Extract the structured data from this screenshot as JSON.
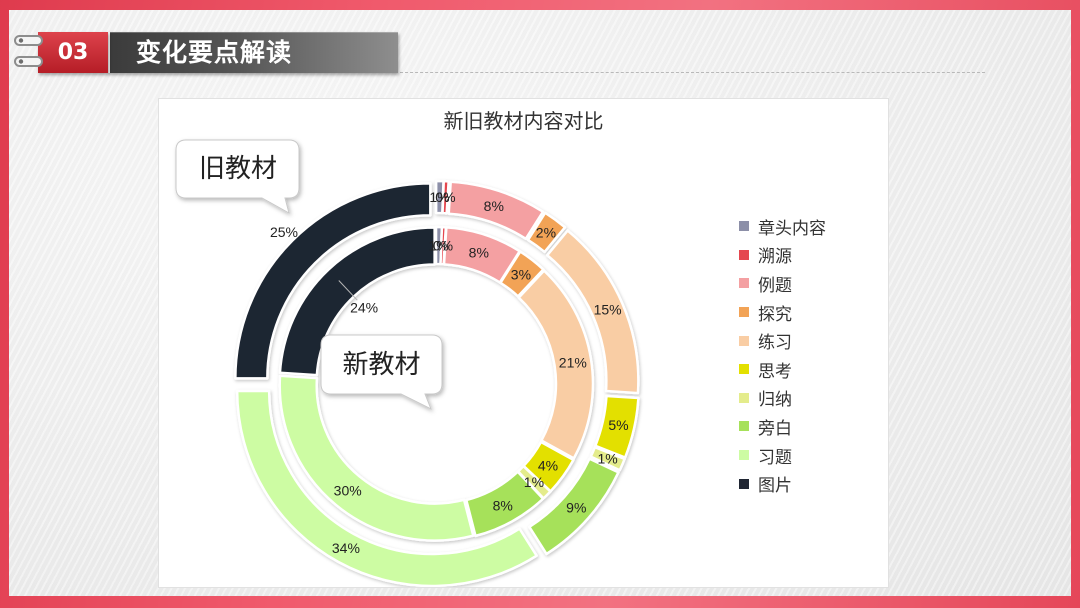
{
  "header": {
    "section_number": "03",
    "section_title": "变化要点解读"
  },
  "theme": {
    "accent": "#d8232e",
    "frame": "#f05a6c"
  },
  "chart_data": {
    "type": "pie",
    "title": "新旧教材内容对比",
    "categories": [
      "章头内容",
      "溯源",
      "例题",
      "探究",
      "练习",
      "思考",
      "归纳",
      "旁白",
      "习题",
      "图片"
    ],
    "colors": [
      "#8c8fa8",
      "#e5474f",
      "#f4a0a2",
      "#f2a356",
      "#f9cda4",
      "#e3e000",
      "#e4ec8c",
      "#a6e15a",
      "#cdfca3",
      "#1f2532"
    ],
    "series": [
      {
        "name": "旧教材",
        "values": [
          0.6,
          0.4,
          8,
          2,
          15,
          5,
          1,
          9,
          34,
          25
        ],
        "labels": [
          "1%",
          "0%",
          "8%",
          "2%",
          "15%",
          "5%",
          "1%",
          "9%",
          "34%",
          "25%"
        ]
      },
      {
        "name": "新教材",
        "values": [
          0.6,
          0.4,
          8,
          3,
          21,
          4,
          1,
          8,
          30,
          24
        ],
        "labels": [
          "1%",
          "0%",
          "8%",
          "3%",
          "21%",
          "4%",
          "1%",
          "8%",
          "30%",
          "24%"
        ]
      }
    ],
    "legend_position": "right"
  }
}
